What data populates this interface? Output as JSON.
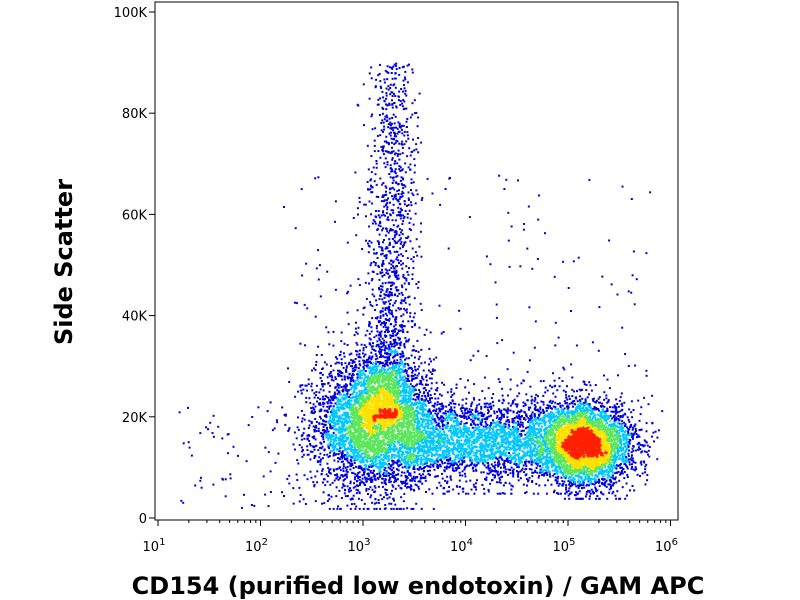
{
  "chart_data": {
    "type": "scatter",
    "style": "density pseudocolor dot plot",
    "xlabel": "CD154 (purified low endotoxin) / GAM APC",
    "ylabel": "Side Scatter",
    "x_scale": "log",
    "xlim": [
      10,
      1000000
    ],
    "ylim": [
      0,
      100000
    ],
    "x_ticks": [
      {
        "base": "10",
        "exp": "1"
      },
      {
        "base": "10",
        "exp": "2"
      },
      {
        "base": "10",
        "exp": "3"
      },
      {
        "base": "10",
        "exp": "4"
      },
      {
        "base": "10",
        "exp": "5"
      },
      {
        "base": "10",
        "exp": "6"
      }
    ],
    "x_tick_values": [
      10,
      100,
      1000,
      10000,
      100000,
      1000000
    ],
    "y_ticks": [
      "0",
      "20K",
      "40K",
      "60K",
      "80K",
      "100K"
    ],
    "y_tick_values": [
      0,
      20000,
      40000,
      60000,
      80000,
      100000
    ],
    "grid": false,
    "legend": "none",
    "colors": {
      "low": "#0000dd",
      "midlow": "#00c8ff",
      "mid": "#5ce65c",
      "midhigh": "#ffe000",
      "high": "#ff2000"
    },
    "populations": [
      {
        "name": "",
        "center_x": 1300,
        "center_y": 19000,
        "description_density": "high"
      },
      {
        "name": "",
        "center_x": 160000,
        "center_y": 14500,
        "description_density": "high"
      },
      {
        "name": "",
        "center_x": 1800,
        "center_y": 55000,
        "description_density": "low"
      }
    ]
  }
}
